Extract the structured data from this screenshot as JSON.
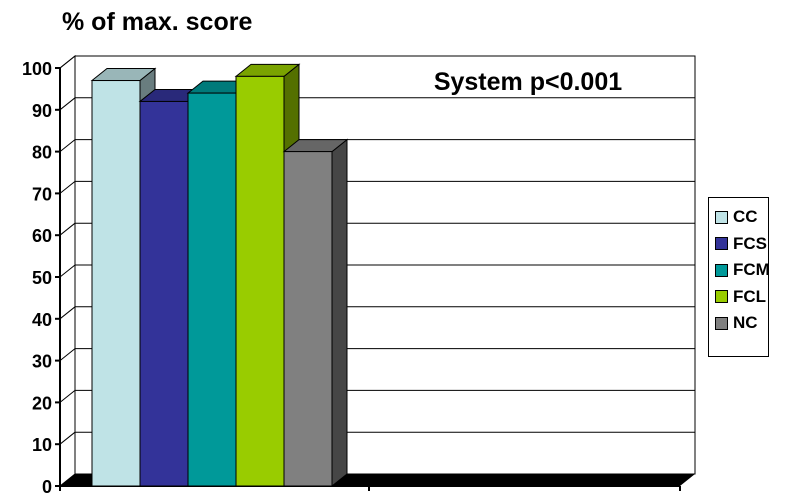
{
  "chart_data": {
    "type": "bar",
    "ylabel": "% of max. score",
    "annotation": "System p<0.001",
    "ylim": [
      0,
      100
    ],
    "yticks": [
      "0",
      "10",
      "20",
      "30",
      "40",
      "50",
      "60",
      "70",
      "80",
      "90",
      "100"
    ],
    "grid": true,
    "legend_position": "right",
    "series": [
      {
        "name": "CC",
        "values": [
          97
        ],
        "color": "#bfe3e6"
      },
      {
        "name": "FCS",
        "values": [
          92
        ],
        "color": "#333399"
      },
      {
        "name": "FCM",
        "values": [
          94
        ],
        "color": "#009999"
      },
      {
        "name": "FCL",
        "values": [
          98
        ],
        "color": "#99cc00"
      },
      {
        "name": "NC",
        "values": [
          80
        ],
        "color": "#808080"
      }
    ]
  }
}
